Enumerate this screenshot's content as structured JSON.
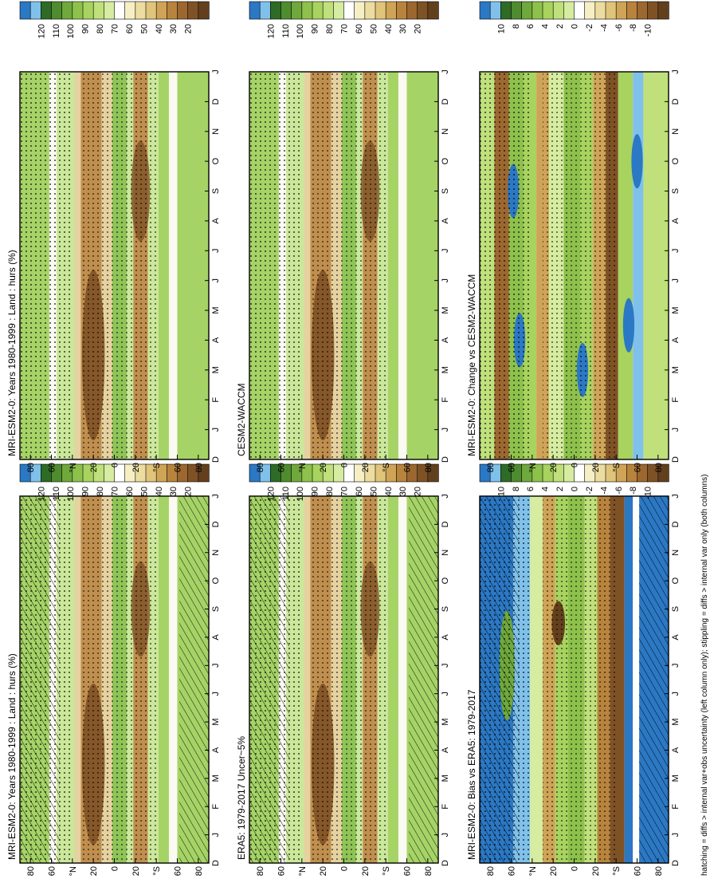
{
  "figure": {
    "footnote": "hatching = diffs > internal var+obs uncertainty (left column only); stippling = diffs > internal var only (both columns)"
  },
  "colors": {
    "ramp_levels": [
      "#2b78c4",
      "#7fc1ea",
      "#2e6b26",
      "#4f8c2f",
      "#6fa83c",
      "#8dc14c",
      "#a7d35e",
      "#bfe07a",
      "#d6eca0",
      "#ffffff",
      "#f6efc4",
      "#ecdca0",
      "#e0c47a",
      "#cfa457",
      "#b8843d",
      "#9c6830",
      "#7f5226",
      "#63401d"
    ],
    "field": {
      "dry_core": "#7a4e23",
      "dry_mid": "#c08f4e",
      "dry_light": "#e6d2a0",
      "neutral": "#fbfaf2",
      "moist_light": "#cbe79a",
      "moist_mid": "#a5d366",
      "moist_deep": "#8fc457"
    }
  },
  "chart_data": [
    {
      "type": "heatmap",
      "title": "MRI-ESM2-0: Years 1980-1999 : Land : hurs (%)",
      "months": [
        "D",
        "J",
        "F",
        "M",
        "A",
        "M",
        "J",
        "J",
        "A",
        "S",
        "O",
        "N",
        "D",
        "J"
      ],
      "lat_labels": [
        "80",
        "60",
        "°N",
        "20",
        "0",
        "20",
        "°S",
        "60",
        "80"
      ],
      "colorbar_ticks": [
        "120",
        "110",
        "100",
        "90",
        "80",
        "70",
        "60",
        "50",
        "40",
        "30",
        "20"
      ],
      "hatching": true,
      "stippling": true,
      "field": "abs"
    },
    {
      "type": "heatmap",
      "title": "MRI-ESM2-0: Years 1980-1999 : Land : hurs (%)",
      "months": [
        "D",
        "J",
        "F",
        "M",
        "A",
        "M",
        "J",
        "J",
        "A",
        "S",
        "O",
        "N",
        "D",
        "J"
      ],
      "lat_labels": [
        "80",
        "60",
        "°N",
        "20",
        "0",
        "20",
        "°S",
        "60",
        "80"
      ],
      "colorbar_ticks": [
        "120",
        "110",
        "100",
        "90",
        "80",
        "70",
        "60",
        "50",
        "40",
        "30",
        "20"
      ],
      "hatching": false,
      "stippling": true,
      "field": "abs"
    },
    {
      "type": "heatmap",
      "title": "ERA5: 1979-2017 Uncer~5%",
      "months": [
        "D",
        "J",
        "F",
        "M",
        "A",
        "M",
        "J",
        "J",
        "A",
        "S",
        "O",
        "N",
        "D",
        "J"
      ],
      "lat_labels": [
        "80",
        "60",
        "°N",
        "20",
        "0",
        "20",
        "°S",
        "60",
        "80"
      ],
      "colorbar_ticks": [
        "120",
        "110",
        "100",
        "90",
        "80",
        "70",
        "60",
        "50",
        "40",
        "30",
        "20"
      ],
      "hatching": true,
      "stippling": true,
      "field": "abs"
    },
    {
      "type": "heatmap",
      "title": "CESM2-WACCM",
      "months": [
        "D",
        "J",
        "F",
        "M",
        "A",
        "M",
        "J",
        "J",
        "A",
        "S",
        "O",
        "N",
        "D",
        "J"
      ],
      "lat_labels": [
        "80",
        "60",
        "°N",
        "20",
        "0",
        "20",
        "°S",
        "60",
        "80"
      ],
      "colorbar_ticks": [
        "120",
        "110",
        "100",
        "90",
        "80",
        "70",
        "60",
        "50",
        "40",
        "30",
        "20"
      ],
      "hatching": false,
      "stippling": true,
      "field": "abs"
    },
    {
      "type": "heatmap",
      "title": "MRI-ESM2-0: Bias vs ERA5: 1979-2017",
      "months": [
        "D",
        "J",
        "F",
        "M",
        "A",
        "M",
        "J",
        "J",
        "A",
        "S",
        "O",
        "N",
        "D",
        "J"
      ],
      "lat_labels": [
        "80",
        "60",
        "°N",
        "20",
        "0",
        "20",
        "°S",
        "60",
        "80"
      ],
      "colorbar_ticks": [
        "10",
        "8",
        "6",
        "4",
        "2",
        "0",
        "-2",
        "-4",
        "-6",
        "-8",
        "-10"
      ],
      "hatching": true,
      "stippling": true,
      "field": "bias"
    },
    {
      "type": "heatmap",
      "title": "MRI-ESM2-0: Change vs CESM2-WACCM",
      "months": [
        "D",
        "J",
        "F",
        "M",
        "A",
        "M",
        "J",
        "J",
        "A",
        "S",
        "O",
        "N",
        "D",
        "J"
      ],
      "lat_labels": [
        "80",
        "60",
        "°N",
        "20",
        "0",
        "20",
        "°S",
        "60",
        "80"
      ],
      "colorbar_ticks": [
        "10",
        "8",
        "6",
        "4",
        "2",
        "0",
        "-2",
        "-4",
        "-6",
        "-8",
        "-10"
      ],
      "hatching": false,
      "stippling": true,
      "field": "change"
    }
  ]
}
